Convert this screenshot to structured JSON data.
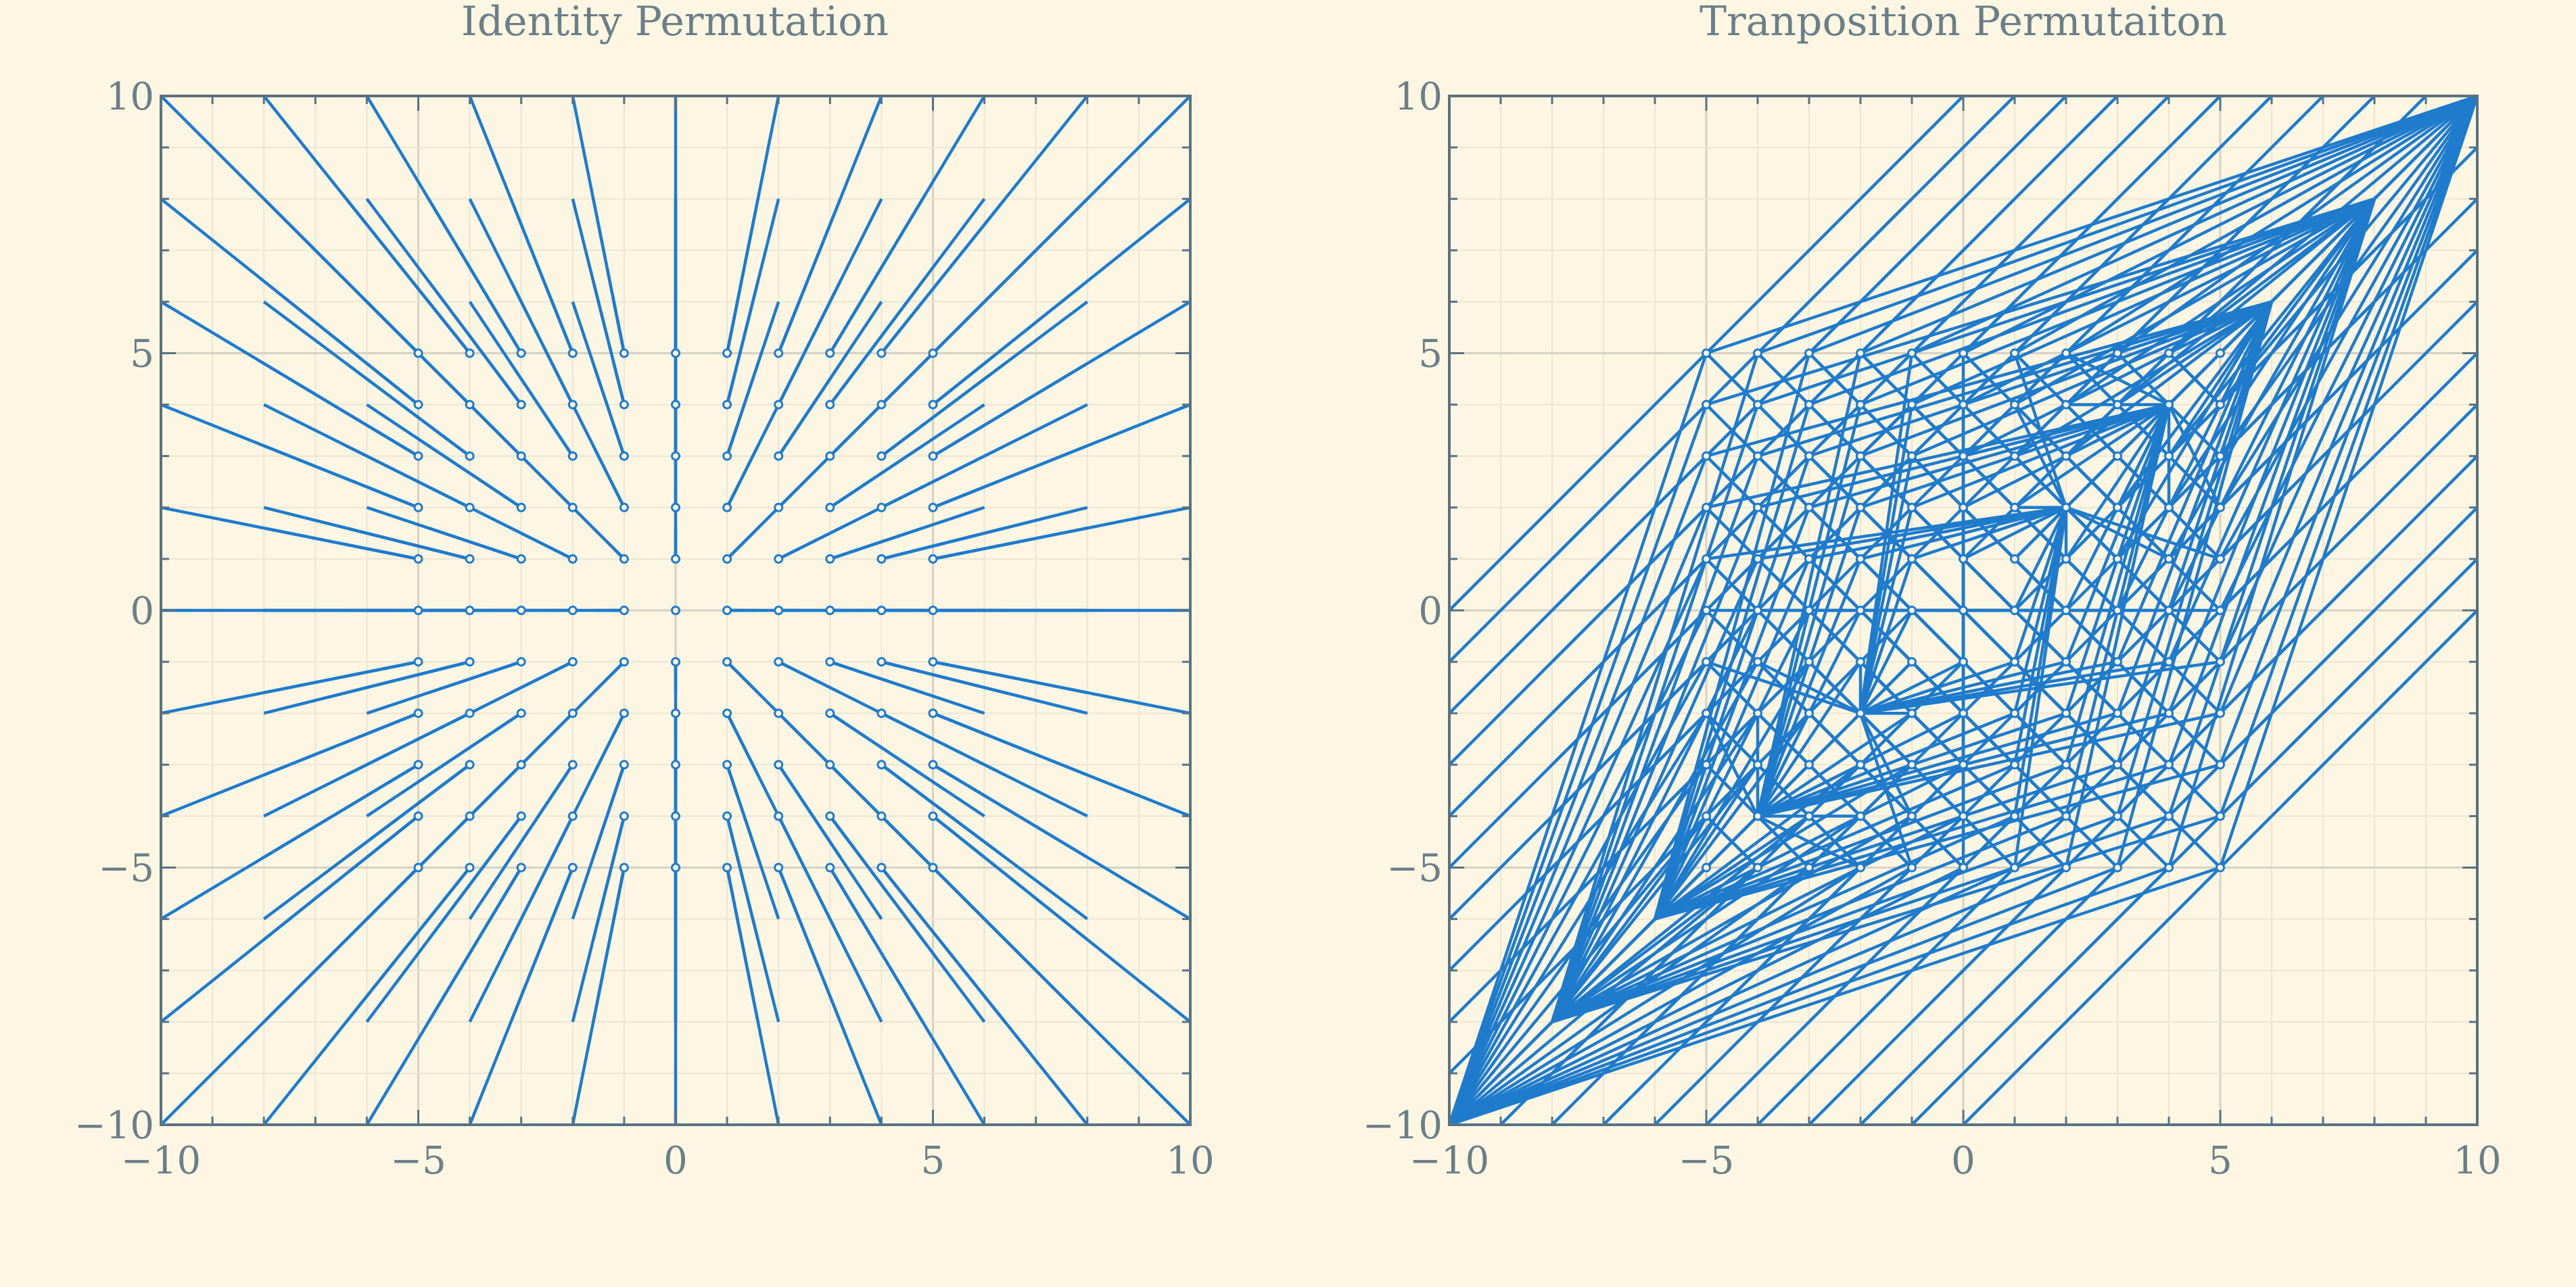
{
  "chart_data": [
    {
      "type": "scatter",
      "title": "Identity Permutation",
      "xlim": [
        -10,
        10
      ],
      "ylim": [
        -10,
        10
      ],
      "xticks": [
        "−10",
        "−5",
        "0",
        "5",
        "10"
      ],
      "yticks": [
        "−10",
        "−5",
        "0",
        "5",
        "10"
      ],
      "grid": true,
      "grid_points": {
        "x_range": [
          -5,
          5
        ],
        "y_range": [
          -5,
          5
        ],
        "step": 1
      },
      "segment_scales": [
        2,
        1.6,
        1.2
      ],
      "series_color": "#1f7bcc"
    },
    {
      "type": "scatter",
      "title": "Tranposition Permutaiton",
      "xlim": [
        -10,
        10
      ],
      "ylim": [
        -10,
        10
      ],
      "xticks": [
        "−10",
        "−5",
        "0",
        "5",
        "10"
      ],
      "yticks": [
        "−10",
        "−5",
        "0",
        "5",
        "10"
      ],
      "grid": true,
      "grid_points": {
        "x_range": [
          -5,
          5
        ],
        "y_range": [
          -5,
          5
        ],
        "step": 1
      },
      "segment_targets": [
        "point",
        "sorted_max_min",
        "sorted_min_max"
      ],
      "series_color": "#1f7bcc"
    }
  ]
}
